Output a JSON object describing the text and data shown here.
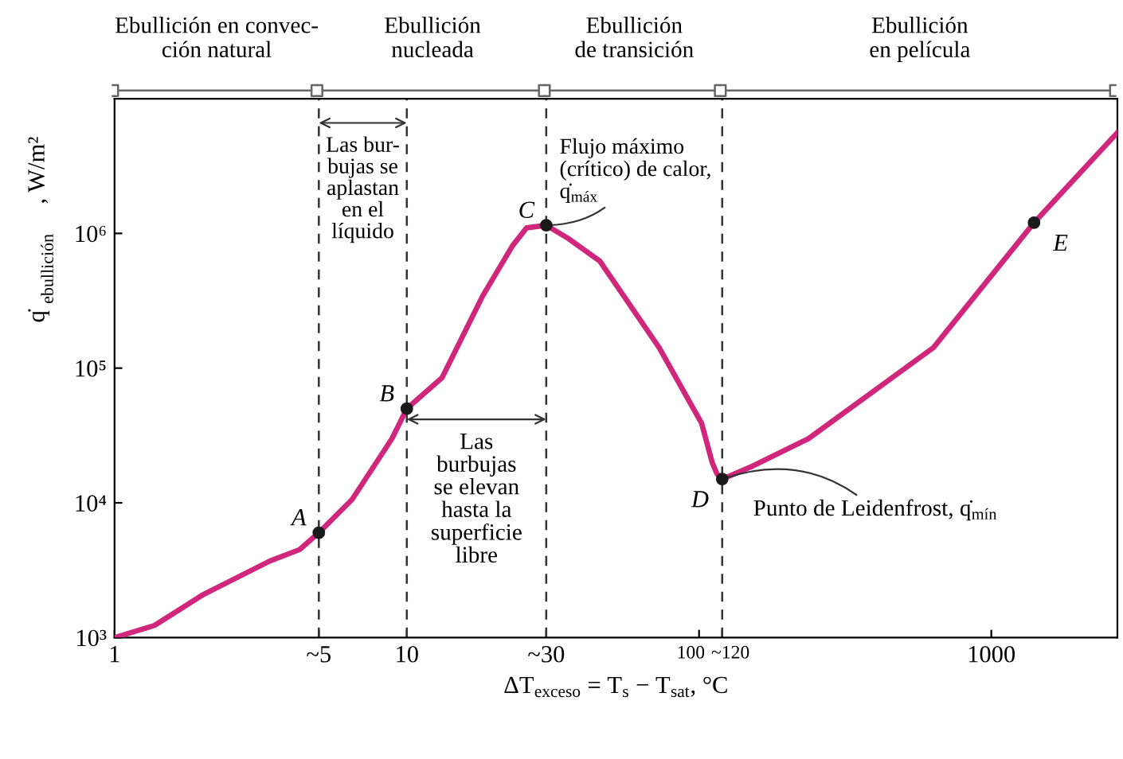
{
  "chart_data": {
    "type": "line",
    "xlabel": "ΔT$_{exceso}$ = T$_{s}$ − T$_{sat}$, °C",
    "ylabel": "q̇$_{ebullición}$, W/m²",
    "log": "xy",
    "xlim": [
      1,
      2700
    ],
    "ylim": [
      1000,
      10000000
    ],
    "xticks": [
      1,
      {
        "value": 5,
        "label": "~5"
      },
      10,
      {
        "value": 30,
        "label": "~30"
      },
      100,
      {
        "value": 120,
        "label": "~120"
      },
      {
        "value": 1000,
        "label": "1000"
      }
    ],
    "yticks": [
      {
        "value": 1000,
        "label": "10³"
      },
      {
        "value": 10000,
        "label": "10⁴"
      },
      {
        "value": 100000,
        "label": "10⁵"
      },
      {
        "value": 1000000,
        "label": "10⁶"
      }
    ],
    "grid": false,
    "series": [
      {
        "type": "line",
        "color": "#d0267c",
        "x": [
          1,
          1.37,
          2,
          3.4,
          4.3,
          5,
          6.5,
          8.9,
          10,
          13.2,
          18.2,
          23,
          25.7,
          30,
          35.6,
          45.7,
          73,
          102,
          111,
          115,
          120,
          153,
          237,
          634,
          1400,
          2700
        ],
        "values": [
          1000,
          1230,
          2070,
          3700,
          4500,
          6000,
          10600,
          30000,
          50000,
          85000,
          345000,
          810000,
          1100000,
          1150000,
          920000,
          625000,
          142000,
          39000,
          19800,
          16500,
          15000,
          18800,
          30000,
          142000,
          1200000,
          5600000
        ]
      },
      {
        "type": "scatter",
        "color": "#1a1a1a",
        "x": [
          5,
          10,
          30,
          120,
          1400
        ],
        "values": [
          6000,
          50000,
          1150000,
          15000,
          1200000
        ]
      }
    ],
    "ref_lines": [
      {
        "axis": "x",
        "value": 5,
        "color": "#333333",
        "line_style": "dashed"
      },
      {
        "axis": "x",
        "value": 10,
        "color": "#333333",
        "line_style": "dashed"
      },
      {
        "axis": "x",
        "value": 30,
        "color": "#333333",
        "line_style": "dashed"
      },
      {
        "axis": "x",
        "value": 120,
        "color": "#333333",
        "line_style": "dashed"
      }
    ],
    "annotations": [
      "Ebullición en convec-\nción natural",
      "Ebullición\nnucleada",
      "Ebullición\nde transición",
      "Ebullición\nen película",
      "Las bur-\nbujas se\naplastan\nen el\nlíquido",
      "Las\nburbujas\nse elevan\nhasta la\nsuperficie\nlibre",
      {
        "text": "Flujo máximo\n(crítico) de calor,\nq̇$_{máx}$",
        "x": 30,
        "y": 1150000
      },
      {
        "text": "Punto de Leidenfrost, q̇$_{mín}$",
        "x": 120,
        "y": 15000
      },
      {
        "text": "A",
        "x": 5,
        "y": 6000
      },
      {
        "text": "B",
        "x": 10,
        "y": 50000
      },
      {
        "text": "C",
        "x": 30,
        "y": 1150000
      },
      {
        "text": "D",
        "x": 120,
        "y": 15000
      },
      {
        "text": "E",
        "x": 1400,
        "y": 1200000
      }
    ]
  }
}
